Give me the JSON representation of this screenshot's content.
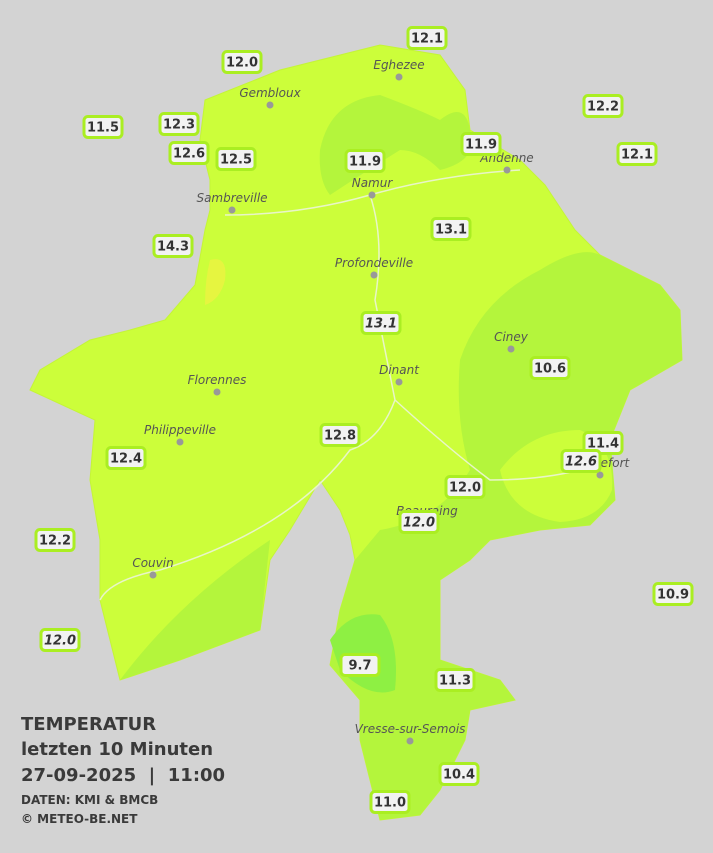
{
  "title": "TEMPERATUR",
  "subtitle": "letzten 10 Minuten",
  "timestamp": "27-09-2025  |  11:00",
  "credits": [
    "DATEN: KMI & BMCB",
    "© METEO-BE.NET"
  ],
  "cities": [
    "Eghezee",
    "Gembloux",
    "Andenne",
    "Namur",
    "Sambreville",
    "Profondeville",
    "Ciney",
    "Dinant",
    "Florennes",
    "Philippeville",
    "Beauraing",
    "Rochefort",
    "Couvin",
    "Vresse-sur-Semois"
  ],
  "stations": [
    {
      "label": "12.1"
    },
    {
      "label": "12.0"
    },
    {
      "label": "11.5"
    },
    {
      "label": "12.3"
    },
    {
      "label": "12.6"
    },
    {
      "label": "12.5"
    },
    {
      "label": "12.2"
    },
    {
      "label": "12.1"
    },
    {
      "label": "11.9"
    },
    {
      "label": "11.9"
    },
    {
      "label": "14.3"
    },
    {
      "label": "13.1"
    },
    {
      "label": "13.1",
      "italic": true
    },
    {
      "label": "10.6"
    },
    {
      "label": "12.8"
    },
    {
      "label": "11.4"
    },
    {
      "label": "12.6",
      "italic": true
    },
    {
      "label": "12.4"
    },
    {
      "label": "12.0"
    },
    {
      "label": "12.0",
      "italic": true
    },
    {
      "label": "12.2"
    },
    {
      "label": "10.9"
    },
    {
      "label": "12.0",
      "italic": true
    },
    {
      "label": "9.7"
    },
    {
      "label": "11.3"
    },
    {
      "label": "10.4"
    },
    {
      "label": "11.0"
    }
  ]
}
